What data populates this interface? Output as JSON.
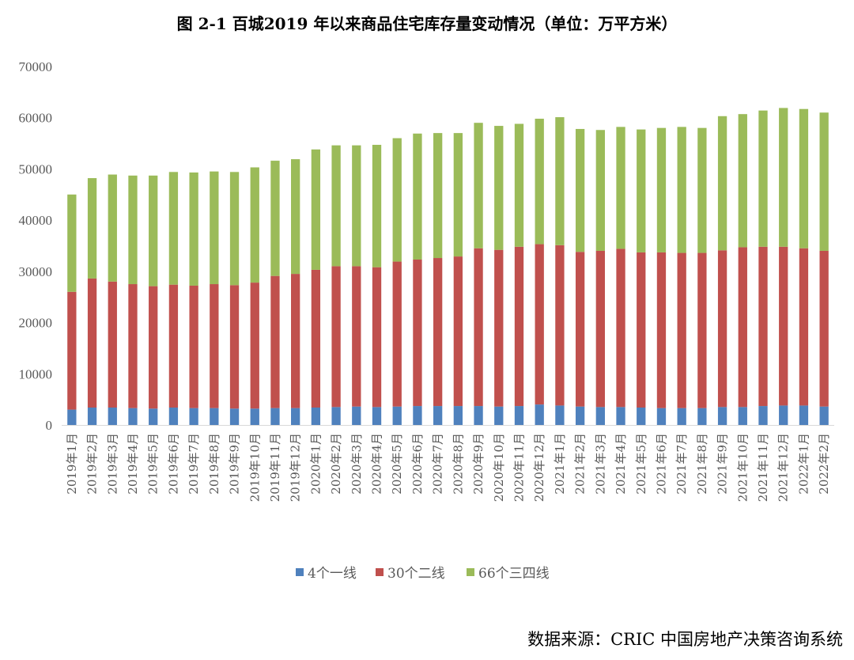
{
  "chart_data": {
    "type": "bar",
    "stacked": true,
    "title": "图 2-1 百城2019 年以来商品住宅库存量变动情况（单位：万平方米）",
    "source": "数据来源：CRIC 中国房地产决策咨询系统",
    "ylim": [
      0,
      70000
    ],
    "yticks": [
      0,
      10000,
      20000,
      30000,
      40000,
      50000,
      60000,
      70000
    ],
    "grid": false,
    "legend_position": "bottom",
    "categories": [
      "2019年1月",
      "2019年2月",
      "2019年3月",
      "2019年4月",
      "2019年5月",
      "2019年6月",
      "2019年7月",
      "2019年8月",
      "2019年9月",
      "2019年10月",
      "2019年11月",
      "2019年12月",
      "2020年1月",
      "2020年2月",
      "2020年3月",
      "2020年4月",
      "2020年5月",
      "2020年6月",
      "2020年7月",
      "2020年8月",
      "2020年9月",
      "2020年10月",
      "2020年11月",
      "2020年12月",
      "2021年1月",
      "2021年2月",
      "2021年3月",
      "2021年4月",
      "2021年5月",
      "2021年6月",
      "2021年7月",
      "2021年8月",
      "2021年9月",
      "2021年10月",
      "2021年11月",
      "2021年12月",
      "2022年1月",
      "2022年2月"
    ],
    "series": [
      {
        "name": "4个一线",
        "color": "#4f81bd",
        "values": [
          3000,
          3400,
          3400,
          3300,
          3200,
          3400,
          3300,
          3300,
          3200,
          3200,
          3300,
          3300,
          3400,
          3500,
          3600,
          3500,
          3600,
          3700,
          3700,
          3700,
          3700,
          3600,
          3700,
          4000,
          3800,
          3600,
          3500,
          3500,
          3400,
          3300,
          3300,
          3300,
          3500,
          3500,
          3700,
          3800,
          3800,
          3600
        ]
      },
      {
        "name": "30个二线",
        "color": "#c0504d",
        "values": [
          23000,
          25200,
          24600,
          24200,
          23900,
          24000,
          23900,
          24200,
          24100,
          24600,
          25800,
          26200,
          26900,
          27500,
          27400,
          27300,
          28300,
          28600,
          28900,
          29200,
          30800,
          30600,
          31100,
          31300,
          31300,
          30200,
          30500,
          30900,
          30300,
          30400,
          30300,
          30300,
          30600,
          31200,
          31100,
          31000,
          30700,
          30400
        ]
      },
      {
        "name": "66个三四线",
        "color": "#9bbb59",
        "values": [
          19000,
          19600,
          20900,
          21200,
          21600,
          22000,
          22100,
          22000,
          22100,
          22500,
          22500,
          22400,
          23500,
          23600,
          23600,
          23900,
          24100,
          24600,
          24400,
          24100,
          24500,
          24200,
          24000,
          24500,
          25000,
          24000,
          23600,
          23800,
          24000,
          24300,
          24600,
          24400,
          26200,
          26000,
          26600,
          27100,
          27200,
          27000
        ]
      }
    ]
  }
}
